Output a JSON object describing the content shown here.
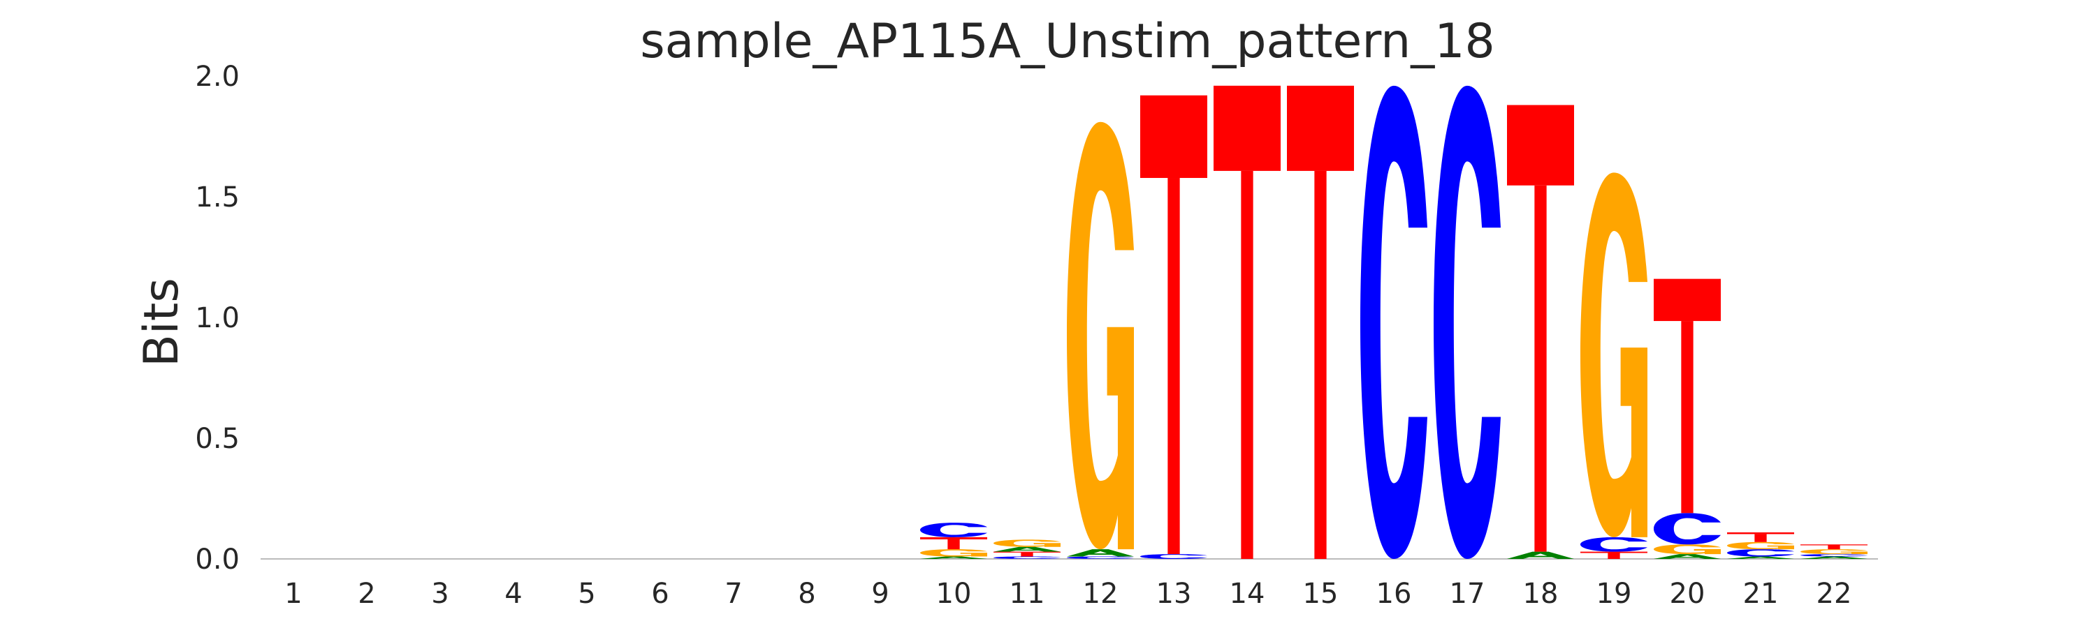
{
  "chart_data": {
    "type": "sequence-logo",
    "title": "sample_AP115A_Unstim_pattern_18",
    "xlabel": "",
    "ylabel": "Bits",
    "ylim": [
      0,
      2.0
    ],
    "yticks": [
      "0.0",
      "0.5",
      "1.0",
      "1.5",
      "2.0"
    ],
    "categories": [
      "1",
      "2",
      "3",
      "4",
      "5",
      "6",
      "7",
      "8",
      "9",
      "10",
      "11",
      "12",
      "13",
      "14",
      "15",
      "16",
      "17",
      "18",
      "19",
      "20",
      "21",
      "22"
    ],
    "grid": false,
    "letter_colors": {
      "A": "#008000",
      "C": "#0000ff",
      "G": "#ffa500",
      "T": "#ff0000"
    },
    "positions": [
      {
        "pos": "1",
        "letters": []
      },
      {
        "pos": "2",
        "letters": []
      },
      {
        "pos": "3",
        "letters": []
      },
      {
        "pos": "4",
        "letters": []
      },
      {
        "pos": "5",
        "letters": []
      },
      {
        "pos": "6",
        "letters": []
      },
      {
        "pos": "7",
        "letters": []
      },
      {
        "pos": "8",
        "letters": []
      },
      {
        "pos": "9",
        "letters": []
      },
      {
        "pos": "10",
        "letters": [
          {
            "base": "A",
            "bits": 0.01
          },
          {
            "base": "G",
            "bits": 0.03
          },
          {
            "base": "T",
            "bits": 0.05
          },
          {
            "base": "C",
            "bits": 0.06
          }
        ]
      },
      {
        "pos": "11",
        "letters": [
          {
            "base": "C",
            "bits": 0.01
          },
          {
            "base": "T",
            "bits": 0.02
          },
          {
            "base": "A",
            "bits": 0.02
          },
          {
            "base": "G",
            "bits": 0.03
          }
        ]
      },
      {
        "pos": "12",
        "letters": [
          {
            "base": "C",
            "bits": 0.01
          },
          {
            "base": "A",
            "bits": 0.03
          },
          {
            "base": "G",
            "bits": 1.77
          }
        ]
      },
      {
        "pos": "13",
        "letters": [
          {
            "base": "C",
            "bits": 0.02
          },
          {
            "base": "T",
            "bits": 1.9
          }
        ]
      },
      {
        "pos": "14",
        "letters": [
          {
            "base": "T",
            "bits": 1.96
          }
        ]
      },
      {
        "pos": "15",
        "letters": [
          {
            "base": "T",
            "bits": 1.96
          }
        ]
      },
      {
        "pos": "16",
        "letters": [
          {
            "base": "C",
            "bits": 1.96
          }
        ]
      },
      {
        "pos": "17",
        "letters": [
          {
            "base": "C",
            "bits": 1.96
          }
        ]
      },
      {
        "pos": "18",
        "letters": [
          {
            "base": "A",
            "bits": 0.03
          },
          {
            "base": "T",
            "bits": 1.85
          }
        ]
      },
      {
        "pos": "19",
        "letters": [
          {
            "base": "T",
            "bits": 0.03
          },
          {
            "base": "C",
            "bits": 0.06
          },
          {
            "base": "G",
            "bits": 1.51
          }
        ]
      },
      {
        "pos": "20",
        "letters": [
          {
            "base": "A",
            "bits": 0.02
          },
          {
            "base": "G",
            "bits": 0.04
          },
          {
            "base": "C",
            "bits": 0.13
          },
          {
            "base": "T",
            "bits": 0.97
          }
        ]
      },
      {
        "pos": "21",
        "letters": [
          {
            "base": "A",
            "bits": 0.01
          },
          {
            "base": "C",
            "bits": 0.03
          },
          {
            "base": "G",
            "bits": 0.03
          },
          {
            "base": "T",
            "bits": 0.04
          }
        ]
      },
      {
        "pos": "22",
        "letters": [
          {
            "base": "A",
            "bits": 0.01
          },
          {
            "base": "C",
            "bits": 0.01
          },
          {
            "base": "G",
            "bits": 0.02
          },
          {
            "base": "T",
            "bits": 0.02
          }
        ]
      }
    ]
  }
}
